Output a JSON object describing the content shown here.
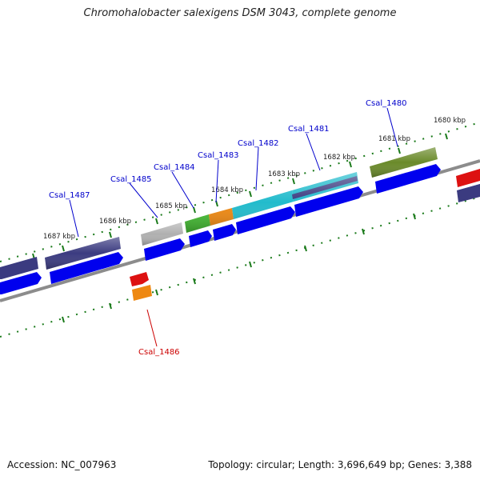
{
  "title": "Chromohalobacter salexigens DSM 3043, complete genome",
  "accession": "Accession: NC_007963",
  "summary": "Topology: circular; Length: 3,696,649 bp; Genes: 3,388",
  "colors": {
    "backbone": "#8c8c8c",
    "cds_forward": "#0000ee",
    "cds_reverse": "#0000ee",
    "label_blue": "#0000cc",
    "label_red": "#cc0000",
    "tick_green": "#1a7a1a",
    "gene_navy": "#3b3b80",
    "gene_olive": "#6a8a2a",
    "gene_grey": "#b0b0b0",
    "gene_green": "#44bb33",
    "gene_orange": "#ee8811",
    "gene_cyan": "#22bbcc",
    "gene_red": "#dd1111"
  },
  "tick_labels": [
    "1680 kbp",
    "1681 kbp",
    "1682 kbp",
    "1683 kbp",
    "1684 kbp",
    "1685 kbp",
    "1686 kbp",
    "1687 kbp"
  ],
  "gene_labels": [
    "Csal_1480",
    "Csal_1481",
    "Csal_1482",
    "Csal_1483",
    "Csal_1484",
    "Csal_1485",
    "Csal_1486",
    "Csal_1487"
  ]
}
